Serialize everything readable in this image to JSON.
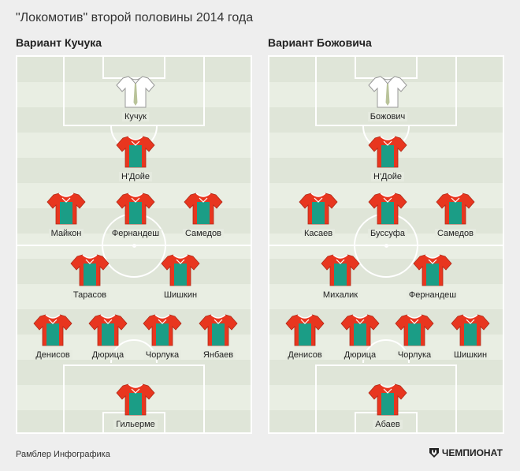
{
  "title": "\"Локомотив\" второй половины 2014 года",
  "colors": {
    "shirt_red": "#e8361f",
    "shirt_green": "#1b9d86",
    "shirt_white": "#ffffff",
    "tie": "#b9c39a"
  },
  "left": {
    "heading": "Вариант Кучука",
    "coach": "Кучук",
    "players": [
      "Н'Дойе",
      "Майкон",
      "Фернандеш",
      "Самедов",
      "Тарасов",
      "Шишкин",
      "Денисов",
      "Дюрица",
      "Чорлука",
      "Янбаев",
      "Гильерме"
    ]
  },
  "right": {
    "heading": "Вариант Божовича",
    "coach": "Божович",
    "players": [
      "Н'Дойе",
      "Касаев",
      "Буссуфа",
      "Самедов",
      "Михалик",
      "Фернандеш",
      "Денисов",
      "Дюрица",
      "Чорлука",
      "Шишкин",
      "Абаев"
    ]
  },
  "footer": {
    "credit": "Рамблер Инфографика",
    "brand": "ЧЕМПИОНАТ",
    "brand_icon": "championat-logo-icon"
  }
}
